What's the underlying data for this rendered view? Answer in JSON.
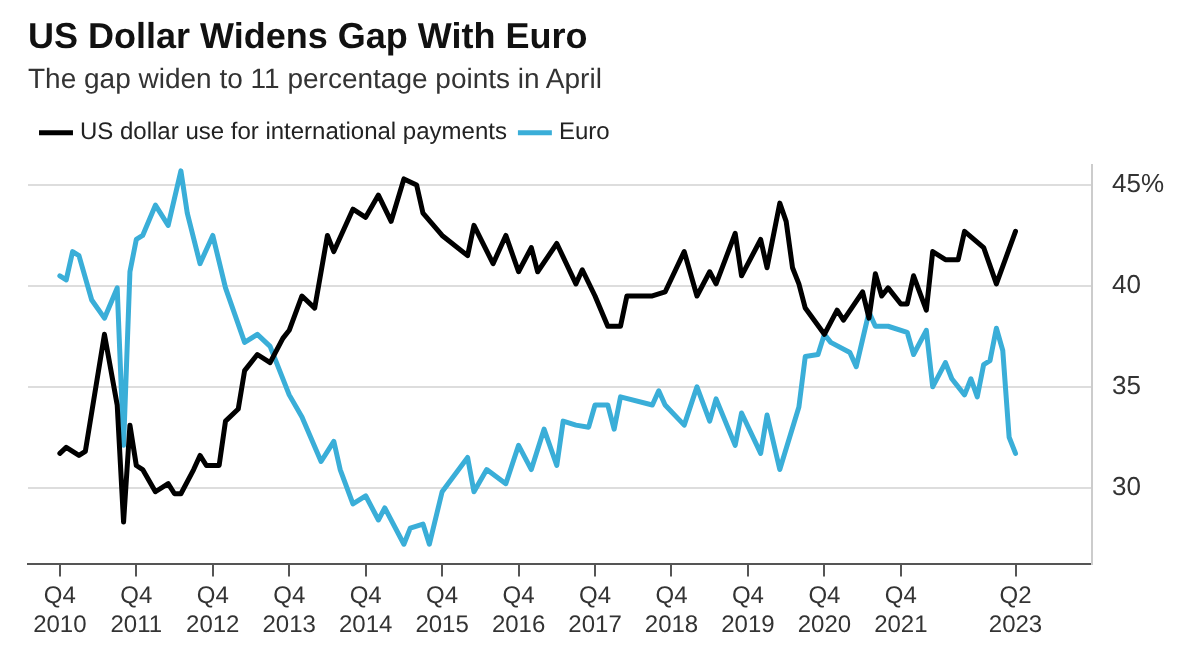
{
  "chart_data": {
    "type": "line",
    "title": "US Dollar Widens Gap With Euro",
    "subtitle": "The gap widen to 11 percentage points in April",
    "xlim": [
      "2010-05",
      "2024-04"
    ],
    "xticks": [
      {
        "value": "2010-10",
        "label": "Q4 2010"
      },
      {
        "value": "2011-10",
        "label": "Q4 2011"
      },
      {
        "value": "2012-10",
        "label": "Q4 2012"
      },
      {
        "value": "2013-10",
        "label": "Q4 2013"
      },
      {
        "value": "2014-10",
        "label": "Q4 2014"
      },
      {
        "value": "2015-10",
        "label": "Q4 2015"
      },
      {
        "value": "2016-10",
        "label": "Q4 2016"
      },
      {
        "value": "2017-10",
        "label": "Q4 2017"
      },
      {
        "value": "2018-10",
        "label": "Q4 2018"
      },
      {
        "value": "2019-10",
        "label": "Q4 2019"
      },
      {
        "value": "2020-10",
        "label": "Q4 2020"
      },
      {
        "value": "2021-10",
        "label": "Q4 2021"
      },
      {
        "value": "2023-04",
        "label": "Q2 2023"
      }
    ],
    "ylim": [
      26.2,
      46
    ],
    "yticks": [
      30,
      35,
      40,
      {
        "value": 45,
        "label": "45%"
      }
    ],
    "grid": "y",
    "legend": "top left",
    "marker": "none",
    "line_style": "solid",
    "series": [
      {
        "name": "US dollar use for international payments",
        "color": "#000000",
        "x": [
          "2010-10",
          "2010-11",
          "2011-01",
          "2011-02",
          "2011-05",
          "2011-07",
          "2011-08",
          "2011-09",
          "2011-10",
          "2011-11",
          "2012-01",
          "2012-03",
          "2012-04",
          "2012-05",
          "2012-07",
          "2012-08",
          "2012-09",
          "2012-11",
          "2012-12",
          "2013-02",
          "2013-03",
          "2013-05",
          "2013-07",
          "2013-09",
          "2013-10",
          "2013-12",
          "2014-02",
          "2014-04",
          "2014-05",
          "2014-08",
          "2014-10",
          "2014-12",
          "2015-02",
          "2015-04",
          "2015-06",
          "2015-07",
          "2015-10",
          "2016-02",
          "2016-03",
          "2016-06",
          "2016-08",
          "2016-10",
          "2016-12",
          "2017-01",
          "2017-04",
          "2017-07",
          "2017-08",
          "2017-10",
          "2017-12",
          "2018-02",
          "2018-03",
          "2018-07",
          "2018-09",
          "2018-12",
          "2019-02",
          "2019-04",
          "2019-05",
          "2019-08",
          "2019-09",
          "2019-12",
          "2020-01",
          "2020-03",
          "2020-04",
          "2020-05",
          "2020-06",
          "2020-07",
          "2020-10",
          "2020-12",
          "2021-01",
          "2021-04",
          "2021-05",
          "2021-06",
          "2021-07",
          "2021-08",
          "2021-10",
          "2021-11",
          "2021-12",
          "2022-02",
          "2022-03",
          "2022-05",
          "2022-07",
          "2022-08",
          "2022-11",
          "2023-01",
          "2023-04"
        ],
        "values": [
          31.7,
          32.0,
          31.6,
          31.8,
          37.6,
          34.1,
          28.3,
          33.1,
          31.1,
          30.9,
          29.8,
          30.2,
          29.7,
          29.7,
          30.9,
          31.6,
          31.1,
          31.1,
          33.3,
          33.9,
          35.8,
          36.6,
          36.2,
          37.4,
          37.8,
          39.5,
          38.9,
          42.5,
          41.7,
          43.8,
          43.4,
          44.5,
          43.2,
          45.3,
          45.0,
          43.6,
          42.5,
          41.5,
          43.0,
          41.1,
          42.5,
          40.7,
          41.9,
          40.7,
          42.1,
          40.1,
          40.8,
          39.5,
          38.0,
          38.0,
          39.5,
          39.5,
          39.7,
          41.7,
          39.5,
          40.7,
          40.1,
          42.6,
          40.5,
          42.3,
          40.9,
          44.1,
          43.2,
          40.9,
          40.1,
          38.9,
          37.6,
          38.8,
          38.3,
          39.7,
          38.4,
          40.6,
          39.5,
          39.9,
          39.1,
          39.1,
          40.5,
          38.8,
          41.7,
          41.3,
          41.3,
          42.7,
          41.9,
          40.1,
          42.7
        ]
      },
      {
        "name": "Euro",
        "color": "#3aaed8",
        "x": [
          "2010-10",
          "2010-11",
          "2010-12",
          "2011-01",
          "2011-03",
          "2011-05",
          "2011-07",
          "2011-08",
          "2011-09",
          "2011-10",
          "2011-11",
          "2012-01",
          "2012-03",
          "2012-05",
          "2012-06",
          "2012-08",
          "2012-10",
          "2012-12",
          "2013-03",
          "2013-05",
          "2013-07",
          "2013-10",
          "2013-12",
          "2014-03",
          "2014-05",
          "2014-06",
          "2014-08",
          "2014-10",
          "2014-12",
          "2015-01",
          "2015-04",
          "2015-05",
          "2015-07",
          "2015-08",
          "2015-10",
          "2016-02",
          "2016-03",
          "2016-05",
          "2016-08",
          "2016-10",
          "2016-12",
          "2017-02",
          "2017-04",
          "2017-05",
          "2017-07",
          "2017-09",
          "2017-10",
          "2017-12",
          "2018-01",
          "2018-02",
          "2018-07",
          "2018-08",
          "2018-09",
          "2018-12",
          "2019-02",
          "2019-04",
          "2019-05",
          "2019-08",
          "2019-09",
          "2019-12",
          "2020-01",
          "2020-03",
          "2020-06",
          "2020-07",
          "2020-09",
          "2020-10",
          "2020-11",
          "2021-02",
          "2021-03",
          "2021-05",
          "2021-06",
          "2021-08",
          "2021-11",
          "2021-12",
          "2022-02",
          "2022-03",
          "2022-05",
          "2022-06",
          "2022-08",
          "2022-09",
          "2022-10",
          "2022-11",
          "2022-12",
          "2023-01",
          "2023-02",
          "2023-03",
          "2023-04"
        ],
        "values": [
          40.5,
          40.3,
          41.7,
          41.5,
          39.3,
          38.4,
          39.9,
          32.1,
          40.7,
          42.3,
          42.5,
          44.0,
          43.0,
          45.7,
          43.6,
          41.1,
          42.5,
          39.9,
          37.2,
          37.6,
          37.0,
          34.6,
          33.5,
          31.3,
          32.3,
          30.9,
          29.2,
          29.6,
          28.4,
          29.0,
          27.2,
          28.0,
          28.2,
          27.2,
          29.8,
          31.5,
          29.8,
          30.9,
          30.2,
          32.1,
          30.9,
          32.9,
          31.1,
          33.3,
          33.1,
          33.0,
          34.1,
          34.1,
          32.9,
          34.5,
          34.1,
          34.8,
          34.1,
          33.1,
          35.0,
          33.3,
          34.4,
          32.1,
          33.7,
          31.7,
          33.6,
          30.9,
          34.0,
          36.5,
          36.6,
          37.6,
          37.2,
          36.7,
          36.0,
          38.7,
          38.0,
          38.0,
          37.7,
          36.6,
          37.8,
          35.0,
          36.2,
          35.4,
          34.6,
          35.4,
          34.5,
          36.1,
          36.3,
          37.9,
          36.8,
          32.5,
          31.7
        ]
      }
    ]
  }
}
